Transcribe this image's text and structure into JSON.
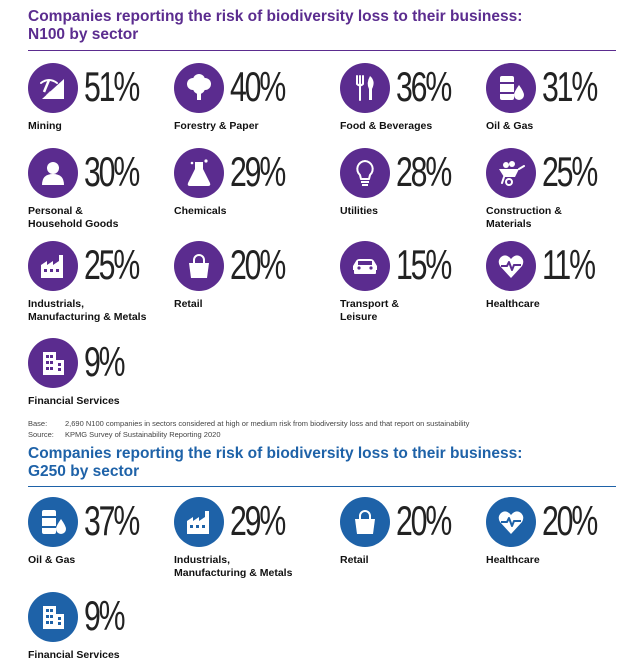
{
  "section1": {
    "title_line1": "Companies reporting the risk of biodiversity loss to their business:",
    "title_line2": "N100 by sector"
  },
  "section2": {
    "title_line1": "Companies reporting the risk of biodiversity loss to their business:",
    "title_line2": "G250 by sector"
  },
  "footnotes": {
    "base_label": "Base:",
    "base_text": "2,690 N100 companies in sectors considered at high or medium risk from biodiversity loss and that report on sustainability",
    "source_label": "Source:",
    "source_text": "KPMG Survey of Sustainability Reporting 2020"
  },
  "colors": {
    "n100": "#5b2c8f",
    "g250": "#1e62a8"
  },
  "chart_data": [
    {
      "type": "table",
      "title": "Companies reporting the risk of biodiversity loss to their business: N100 by sector",
      "categories": [
        "Mining",
        "Forestry & Paper",
        "Food & Beverages",
        "Oil & Gas",
        "Personal & Household Goods",
        "Chemicals",
        "Utilities",
        "Construction & Materials",
        "Industrials, Manufacturing & Metals",
        "Retail",
        "Transport & Leisure",
        "Healthcare",
        "Financial Services"
      ],
      "values": [
        51,
        40,
        36,
        31,
        30,
        29,
        28,
        25,
        25,
        20,
        15,
        11,
        9
      ],
      "display": [
        "51%",
        "40%",
        "36%",
        "31%",
        "30%",
        "29%",
        "28%",
        "25%",
        "25%",
        "20%",
        "15%",
        "11%",
        "9%"
      ],
      "label_lines": [
        [
          "Mining"
        ],
        [
          "Forestry & Paper"
        ],
        [
          "Food & Beverages"
        ],
        [
          "Oil & Gas"
        ],
        [
          "Personal &",
          "Household Goods"
        ],
        [
          "Chemicals"
        ],
        [
          "Utilities"
        ],
        [
          "Construction &",
          "Materials"
        ],
        [
          "Industrials,",
          "Manufacturing & Metals"
        ],
        [
          "Retail"
        ],
        [
          "Transport &",
          "Leisure"
        ],
        [
          "Healthcare"
        ],
        [
          "Financial Services"
        ]
      ],
      "icons": [
        "mining-icon",
        "tree-icon",
        "cutlery-icon",
        "oil-barrel-icon",
        "person-icon",
        "flask-icon",
        "lightbulb-icon",
        "wheelbarrow-icon",
        "factory-icon",
        "shopping-bag-icon",
        "car-icon",
        "heart-pulse-icon",
        "office-building-icon"
      ],
      "unit": "%"
    },
    {
      "type": "table",
      "title": "Companies reporting the risk of biodiversity loss to their business: G250 by sector",
      "categories": [
        "Oil & Gas",
        "Industrials, Manufacturing & Metals",
        "Retail",
        "Healthcare",
        "Financial Services"
      ],
      "values": [
        37,
        29,
        20,
        20,
        9
      ],
      "display": [
        "37%",
        "29%",
        "20%",
        "20%",
        "9%"
      ],
      "label_lines": [
        [
          "Oil & Gas"
        ],
        [
          "Industrials,",
          "Manufacturing & Metals"
        ],
        [
          "Retail"
        ],
        [
          "Healthcare"
        ],
        [
          "Financial Services"
        ]
      ],
      "icons": [
        "oil-barrel-icon",
        "factory-icon",
        "shopping-bag-icon",
        "heart-pulse-icon",
        "office-building-icon"
      ],
      "unit": "%"
    }
  ]
}
